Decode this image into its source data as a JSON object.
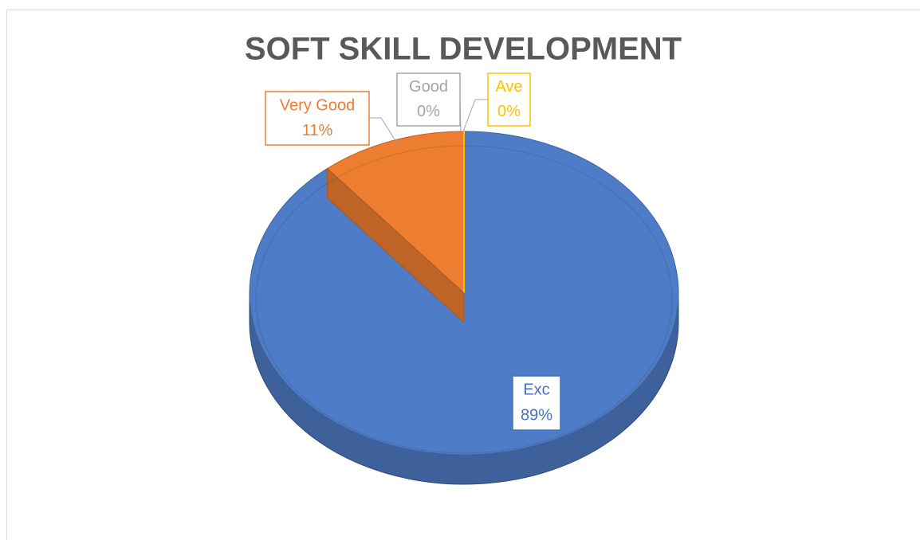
{
  "chart_data": {
    "type": "pie",
    "title": "SOFT SKILL DEVELOPMENT",
    "categories": [
      "Exc",
      "Very Good",
      "Good",
      "Ave"
    ],
    "values": [
      89,
      11,
      0,
      0
    ],
    "value_labels": [
      "89%",
      "11%",
      "0%",
      "0%"
    ],
    "colors": [
      "#4f7cc7",
      "#ed7d31",
      "#a5a5a5",
      "#ffc000"
    ],
    "label_colors": [
      "#4472c4",
      "#ed7d31",
      "#a5a5a5",
      "#ffc000"
    ]
  }
}
